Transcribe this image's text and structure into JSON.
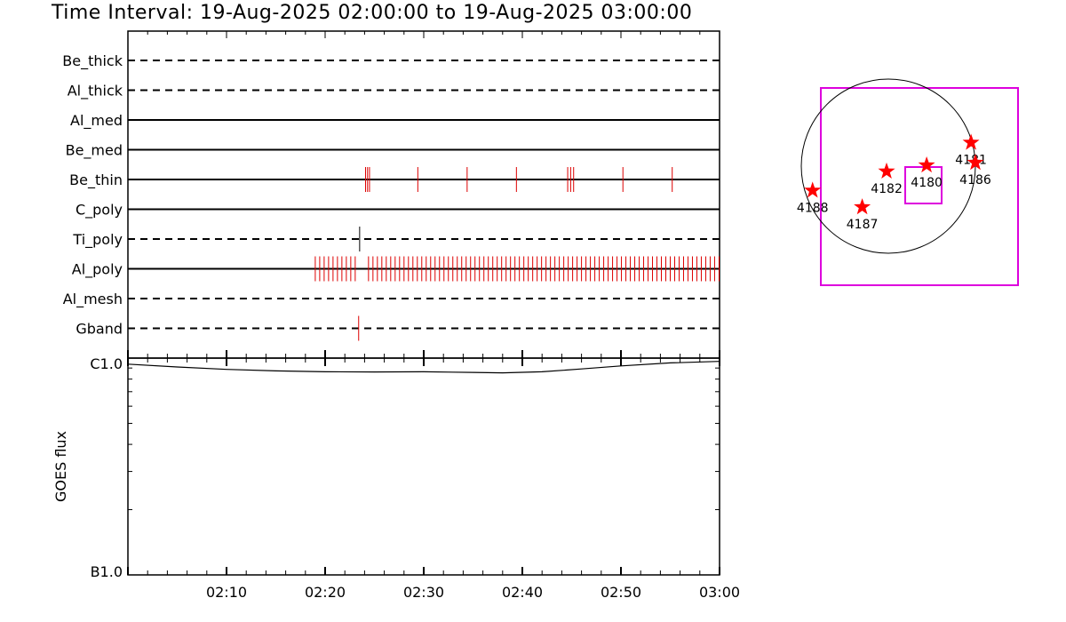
{
  "title": "Time Interval: 19-Aug-2025 02:00:00 to 19-Aug-2025 03:00:00",
  "colors": {
    "event": "#dd0000",
    "box": "#dd00dd",
    "axis": "#000000",
    "star": "#ff0000"
  },
  "chart_data": [
    {
      "type": "scatter",
      "x_range": [
        "02:00",
        "03:00"
      ],
      "x_tick_labels": [
        "02:10",
        "02:20",
        "02:30",
        "02:40",
        "02:50",
        "03:00"
      ],
      "filters": [
        {
          "name": "Be_thick",
          "line": "dashed",
          "events": [],
          "event_color": "red"
        },
        {
          "name": "Al_thick",
          "line": "dashed",
          "events": [],
          "event_color": "red"
        },
        {
          "name": "Al_med",
          "line": "solid",
          "events": [],
          "event_color": "red"
        },
        {
          "name": "Be_med",
          "line": "solid",
          "events": [],
          "event_color": "red"
        },
        {
          "name": "Be_thin",
          "line": "solid",
          "events": [
            24.1,
            24.3,
            24.5,
            29.4,
            34.4,
            39.4,
            44.6,
            44.9,
            45.2,
            50.2,
            55.2
          ],
          "event_color": "red"
        },
        {
          "name": "C_poly",
          "line": "solid",
          "events": [],
          "event_color": "red"
        },
        {
          "name": "Ti_poly",
          "line": "dashed",
          "events": [
            23.5
          ],
          "event_color": "black"
        },
        {
          "name": "Al_poly",
          "line": "solid",
          "events": [],
          "event_pattern": {
            "start": 19.0,
            "end": 60.0,
            "step": 0.45,
            "gap": [
              23.3,
              24.0
            ]
          },
          "event_color": "red"
        },
        {
          "name": "Al_mesh",
          "line": "dashed",
          "events": [],
          "event_color": "red"
        },
        {
          "name": "Gband",
          "line": "dashed",
          "events": [
            23.4
          ],
          "event_color": "red"
        }
      ]
    },
    {
      "type": "line",
      "ylabel": "GOES flux",
      "y_tick_labels": [
        "C1.0",
        "B1.0"
      ],
      "ylim_log": [
        -7,
        -6
      ],
      "x_tick_labels": [
        "02:10",
        "02:20",
        "02:30",
        "02:40",
        "02:50",
        "03:00"
      ],
      "x_minutes": [
        0,
        5,
        10,
        15,
        20,
        25,
        30,
        35,
        38,
        42,
        46,
        50,
        55,
        60
      ],
      "y_log": [
        -6.028,
        -6.041,
        -6.052,
        -6.059,
        -6.063,
        -6.064,
        -6.063,
        -6.066,
        -6.068,
        -6.063,
        -6.05,
        -6.036,
        -6.022,
        -6.015
      ]
    },
    {
      "type": "scatter",
      "description_labels": true,
      "regions": [
        {
          "label": "4188",
          "x": -0.87,
          "y": -0.28
        },
        {
          "label": "4187",
          "x": -0.3,
          "y": -0.47
        },
        {
          "label": "4182",
          "x": -0.02,
          "y": -0.06
        },
        {
          "label": "4180",
          "x": 0.44,
          "y": 0.01
        },
        {
          "label": "4181",
          "x": 0.95,
          "y": 0.27
        },
        {
          "label": "4186",
          "x": 1.0,
          "y": 0.04
        }
      ]
    }
  ]
}
